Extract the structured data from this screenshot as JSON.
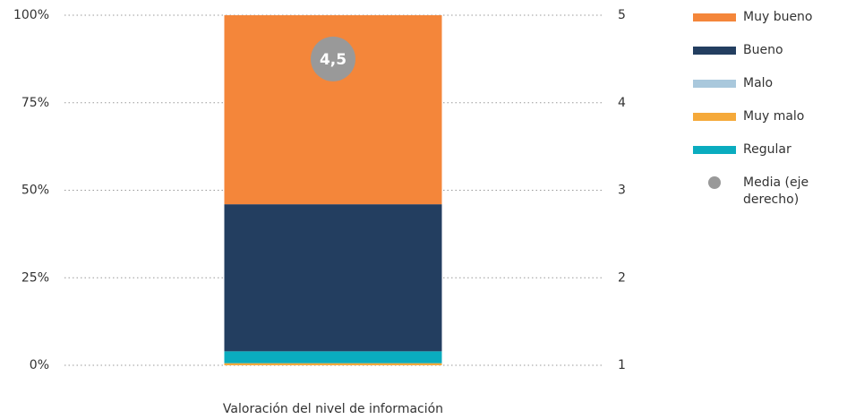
{
  "chart_data": {
    "type": "stacked_bar",
    "categories": [
      "Valoración del nivel de información"
    ],
    "series": [
      {
        "name": "Muy bueno",
        "color": "#f4863a",
        "values": [
          54
        ]
      },
      {
        "name": "Bueno",
        "color": "#233e60",
        "values": [
          42
        ]
      },
      {
        "name": "Malo",
        "color": "#a9c8dc",
        "values": [
          0
        ]
      },
      {
        "name": "Muy malo",
        "color": "#f5a93a",
        "values": [
          0.6
        ]
      },
      {
        "name": "Regular",
        "color": "#0aacbf",
        "values": [
          3.4
        ]
      },
      {
        "name": "Media (eje derecho)",
        "color": "#999999",
        "type": "scatter",
        "axis": "y2",
        "values": [
          4.5
        ],
        "value_labels": [
          "4,5"
        ]
      }
    ],
    "ylim": [
      0,
      100
    ],
    "yticks": [
      {
        "value": 0,
        "label": "0%"
      },
      {
        "value": 25,
        "label": "25%"
      },
      {
        "value": 50,
        "label": "50%"
      },
      {
        "value": 75,
        "label": "75%"
      },
      {
        "value": 100,
        "label": "100%"
      }
    ],
    "y2lim": [
      1,
      5
    ],
    "y2ticks": [
      1,
      2,
      3,
      4,
      5
    ],
    "grid": true,
    "legend": "right"
  }
}
